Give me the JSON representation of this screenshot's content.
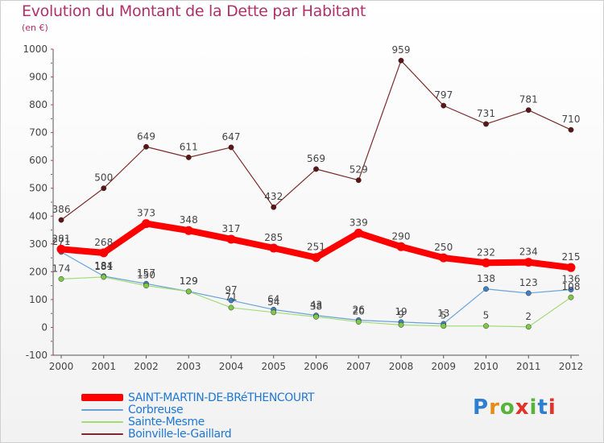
{
  "title": "Evolution du Montant de la Dette par Habitant",
  "unit_label": "(en €)",
  "logo_text": "Proxiti",
  "chart_data": {
    "type": "line",
    "title": "Evolution du Montant de la Dette par Habitant",
    "ylabel": "(en €)",
    "xlabel": "",
    "x": [
      "2000",
      "2001",
      "2002",
      "2003",
      "2004",
      "2005",
      "2006",
      "2007",
      "2008",
      "2009",
      "2010",
      "2011",
      "2012"
    ],
    "ylim": [
      -100,
      1000
    ],
    "yticks": [
      -100,
      0,
      100,
      200,
      300,
      400,
      500,
      600,
      700,
      800,
      900,
      1000
    ],
    "grid": false,
    "legend_position": "bottom-left",
    "series": [
      {
        "name": "Boinville-le-Gaillard",
        "color": "#7b2b2b",
        "marker_color": "#5c1414",
        "width": 1.2,
        "values": [
          386,
          500,
          649,
          611,
          647,
          432,
          569,
          529,
          959,
          797,
          731,
          781,
          710
        ]
      },
      {
        "name": "Corbreuse",
        "color": "#6aa2d8",
        "marker_color": "#3f7fc4",
        "width": 1.2,
        "values": [
          271,
          184,
          157,
          129,
          97,
          64,
          43,
          26,
          19,
          13,
          138,
          123,
          136
        ]
      },
      {
        "name": "Sainte-Mesme",
        "color": "#a2dc7a",
        "marker_color": "#7ec848",
        "width": 1.2,
        "values": [
          174,
          181,
          150,
          129,
          71,
          54,
          38,
          20,
          9,
          5,
          5,
          2,
          108
        ]
      },
      {
        "name": "SAINT-MARTIN-DE-BRéTHENCOURT",
        "color": "#ff0000",
        "marker_color": "#ff0000",
        "width": 8,
        "values": [
          281,
          268,
          373,
          348,
          317,
          285,
          251,
          339,
          290,
          250,
          232,
          234,
          215
        ]
      }
    ],
    "legend_order": [
      "SAINT-MARTIN-DE-BRéTHENCOURT",
      "Corbreuse",
      "Sainte-Mesme",
      "Boinville-le-Gaillard"
    ]
  }
}
